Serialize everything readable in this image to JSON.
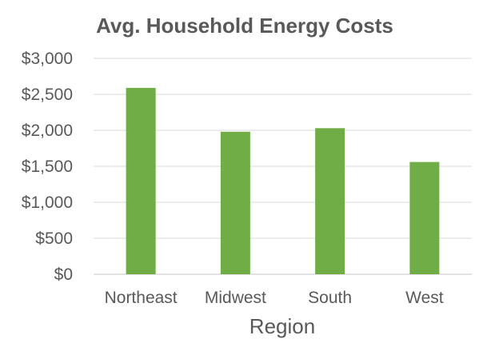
{
  "chart_data": {
    "type": "bar",
    "title": "Avg. Household Energy Costs",
    "xlabel": "Region",
    "ylabel": "",
    "categories": [
      "Northeast",
      "Midwest",
      "South",
      "West"
    ],
    "values": [
      2590,
      1980,
      2030,
      1560
    ],
    "ylim": [
      0,
      3000
    ],
    "yticks": [
      0,
      500,
      1000,
      1500,
      2000,
      2500,
      3000
    ],
    "ytick_labels": [
      "$0",
      "$500",
      "$1,000",
      "$1,500",
      "$2,000",
      "$2,500",
      "$3,000"
    ],
    "grid": true,
    "legend": "none",
    "bar_color": "#70ad47",
    "text_color": "#595959",
    "grid_color": "#d9d9d9"
  }
}
